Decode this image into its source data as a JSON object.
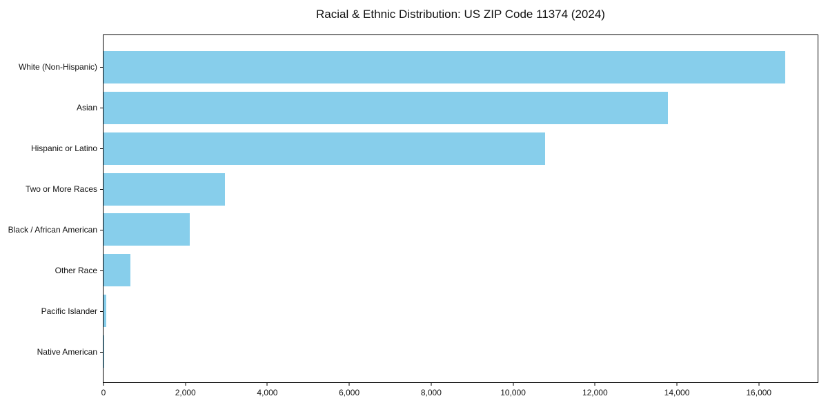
{
  "chart_data": {
    "type": "bar",
    "orientation": "horizontal",
    "title": "Racial & Ethnic Distribution: US ZIP Code 11374 (2024)",
    "xlabel": "",
    "ylabel": "",
    "categories": [
      "White (Non-Hispanic)",
      "Asian",
      "Hispanic or Latino",
      "Two or More Races",
      "Black / African American",
      "Other Race",
      "Pacific Islander",
      "Native American"
    ],
    "values": [
      16640,
      13780,
      10790,
      2960,
      2100,
      660,
      60,
      15
    ],
    "bar_color": "#87CEEB",
    "xlim": [
      0,
      17470
    ],
    "x_tick_values": [
      0,
      2000,
      4000,
      6000,
      8000,
      10000,
      12000,
      14000,
      16000
    ],
    "x_tick_labels": [
      "0",
      "2,000",
      "4,000",
      "6,000",
      "8,000",
      "10,000",
      "12,000",
      "14,000",
      "16,000"
    ],
    "grid": false,
    "legend": null,
    "bar_height_fraction": 0.8
  }
}
